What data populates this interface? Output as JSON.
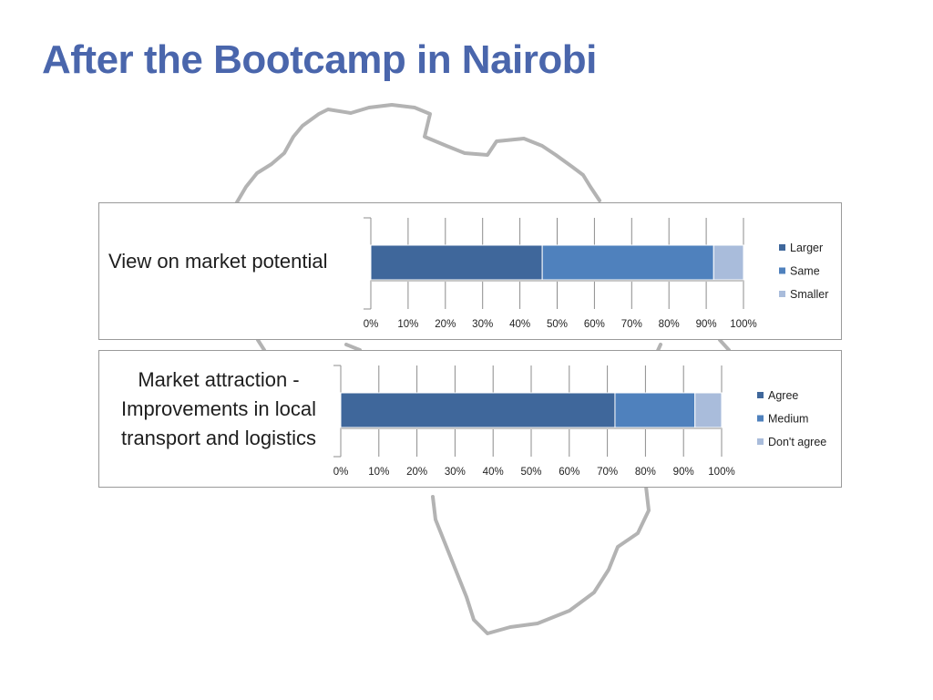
{
  "slide": {
    "title": "After the Bootcamp in Nairobi"
  },
  "chart_data": [
    {
      "type": "bar",
      "orientation": "horizontal",
      "stacked": "percent",
      "title": "View on market potential",
      "x_ticks": [
        "0%",
        "10%",
        "20%",
        "30%",
        "40%",
        "50%",
        "60%",
        "70%",
        "80%",
        "90%",
        "100%"
      ],
      "xlim": [
        0,
        100
      ],
      "grid": true,
      "legend_position": "right",
      "series": [
        {
          "name": "Larger",
          "values": [
            46
          ],
          "color": "#3f679b"
        },
        {
          "name": "Same",
          "values": [
            46
          ],
          "color": "#4f81bd"
        },
        {
          "name": "Smaller",
          "values": [
            8
          ],
          "color": "#a9bcdb"
        }
      ]
    },
    {
      "type": "bar",
      "orientation": "horizontal",
      "stacked": "percent",
      "title": "Market attraction - Improvements in local transport and logistics",
      "x_ticks": [
        "0%",
        "10%",
        "20%",
        "30%",
        "40%",
        "50%",
        "60%",
        "70%",
        "80%",
        "90%",
        "100%"
      ],
      "xlim": [
        0,
        100
      ],
      "grid": true,
      "legend_position": "right",
      "series": [
        {
          "name": "Agree",
          "values": [
            72
          ],
          "color": "#3f679b"
        },
        {
          "name": "Medium",
          "values": [
            21
          ],
          "color": "#4f81bd"
        },
        {
          "name": "Don't agree",
          "values": [
            7
          ],
          "color": "#a9bcdb"
        }
      ]
    }
  ]
}
